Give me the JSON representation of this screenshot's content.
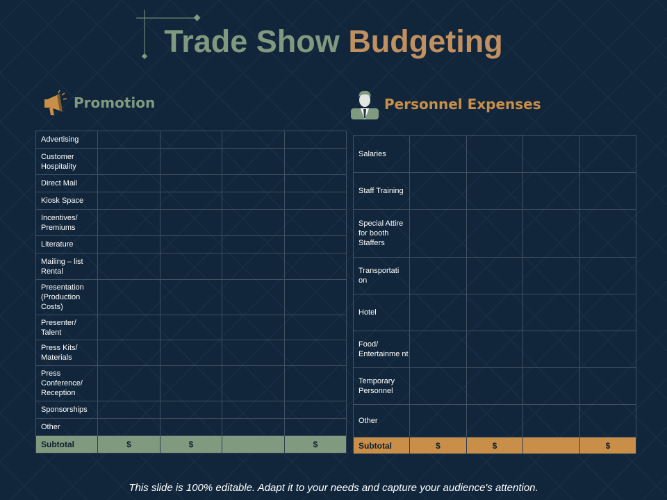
{
  "colors": {
    "background": "#11263b",
    "green": "#7f9a7f",
    "gold": "#c98f48",
    "title_gold": "#c09060"
  },
  "title": {
    "part1": "Trade Show",
    "part2": "Budgeting"
  },
  "promotion": {
    "heading": "Promotion",
    "icon": "megaphone-icon",
    "rows": [
      "Advertising",
      "Customer Hospitality",
      "Direct Mail",
      "Kiosk Space",
      "Incentives/ Premiums",
      "Literature",
      "Mailing – list Rental",
      "Presentation (Production Costs)",
      "Presenter/ Talent",
      "Press Kits/ Materials",
      "Press Conference/ Reception",
      "Sponsorships",
      "Other"
    ],
    "subtotal": {
      "label": "Subtotal",
      "cells": [
        "$",
        "$",
        "",
        "$"
      ]
    }
  },
  "personnel": {
    "heading": "Personnel Expenses",
    "icon": "businessman-icon",
    "rows": [
      "Salaries",
      "Staff Training",
      "Special Attire for booth Staffers",
      "Transportati on",
      "Hotel",
      "Food/ Entertainme nt",
      "Temporary Personnel",
      "Other"
    ],
    "subtotal": {
      "label": "Subtotal",
      "cells": [
        "$",
        "$",
        "",
        "$"
      ]
    }
  },
  "footer": "This slide is 100% editable. Adapt it to your needs and capture your audience's attention."
}
